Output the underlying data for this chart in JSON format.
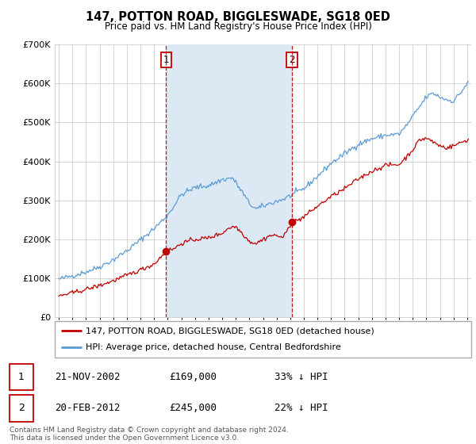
{
  "title": "147, POTTON ROAD, BIGGLESWADE, SG18 0ED",
  "subtitle": "Price paid vs. HM Land Registry's House Price Index (HPI)",
  "legend_line1": "147, POTTON ROAD, BIGGLESWADE, SG18 0ED (detached house)",
  "legend_line2": "HPI: Average price, detached house, Central Bedfordshire",
  "transaction1_date": "21-NOV-2002",
  "transaction1_price": "£169,000",
  "transaction1_hpi": "33% ↓ HPI",
  "transaction2_date": "20-FEB-2012",
  "transaction2_price": "£245,000",
  "transaction2_hpi": "22% ↓ HPI",
  "footer": "Contains HM Land Registry data © Crown copyright and database right 2024.\nThis data is licensed under the Open Government Licence v3.0.",
  "hpi_color": "#5b9bd5",
  "price_color": "#c00000",
  "vline_color": "#c00000",
  "shade_color": "#dce9f5",
  "background_color": "#ffffff",
  "plot_bg_color": "#ffffff",
  "grid_color": "#cccccc",
  "ylim": [
    0,
    700000
  ],
  "xlim_start": 1994.7,
  "xlim_end": 2025.3,
  "transaction1_x": 2002.88,
  "transaction2_x": 2012.12,
  "transaction1_y": 169000,
  "transaction2_y": 245000
}
